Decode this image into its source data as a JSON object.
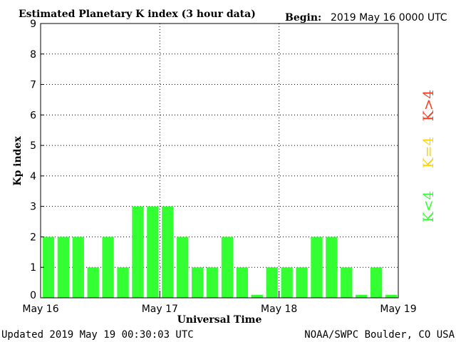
{
  "header": {
    "title": "Estimated Planetary K index (3 hour data)",
    "begin_label": "Begin:",
    "begin_value": "2019 May 16 0000 UTC"
  },
  "footer": {
    "updated": "Updated 2019 May 19 00:30:03 UTC",
    "credit": "NOAA/SWPC Boulder, CO USA"
  },
  "legend": {
    "low": "K<4",
    "mid": "K=4",
    "high": "K>4",
    "low_color": "#33ff33",
    "mid_color": "#ffd400",
    "high_color": "#ff3b1f"
  },
  "chart_data": {
    "type": "bar",
    "title": "Estimated Planetary K index (3 hour data)",
    "xlabel": "Universal Time",
    "ylabel": "Kp index",
    "ylim": [
      0,
      9
    ],
    "yticks": [
      "0",
      "1",
      "2",
      "3",
      "4",
      "5",
      "6",
      "7",
      "8",
      "9"
    ],
    "xtick_labels": [
      "May 16",
      "May 17",
      "May 18",
      "May 19"
    ],
    "bar_color": "#33ff33",
    "grid": "dotted",
    "values": [
      2,
      2,
      2,
      1,
      2,
      1,
      3,
      3,
      3,
      2,
      1,
      1,
      2,
      1,
      0.1,
      1,
      1,
      1,
      2,
      2,
      1,
      0.1,
      1,
      0.1
    ]
  }
}
